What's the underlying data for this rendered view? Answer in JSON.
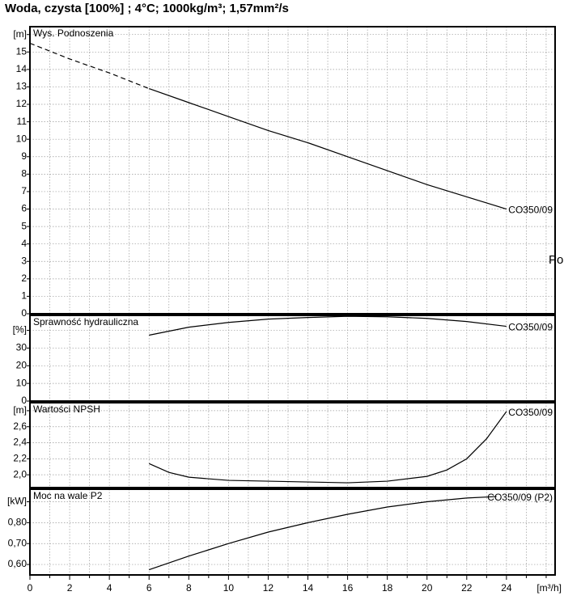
{
  "title": "Woda, czysta [100%] ; 4°C; 1000kg/m³; 1,57mm²/s",
  "chart_data": [
    {
      "type": "line",
      "title": "Wys. Podnoszenia",
      "annotation": "Po",
      "x": [
        0,
        2,
        4,
        6,
        8,
        10,
        12,
        14,
        16,
        18,
        20,
        22,
        24
      ],
      "series": [
        {
          "color": "#000000",
          "dashed": true,
          "values": [
            15.5,
            14.6,
            13.8,
            12.9,
            null,
            null,
            null,
            null,
            null,
            null,
            null,
            null,
            null
          ]
        },
        {
          "name": "CO350/09",
          "color": "#000000",
          "values": [
            null,
            null,
            null,
            12.9,
            12.1,
            11.3,
            10.5,
            9.8,
            9.0,
            8.2,
            7.4,
            6.7,
            6.0
          ]
        }
      ],
      "xlim": [
        0,
        26.45
      ],
      "ylim": [
        0,
        16.45
      ],
      "yticks": [
        0,
        1,
        2,
        3,
        4,
        5,
        6,
        7,
        8,
        9,
        10,
        11,
        12,
        13,
        14,
        15,
        {
          "value": 16,
          "label": "[m]"
        }
      ]
    },
    {
      "type": "line",
      "title": "Sprawność hydrauliczna",
      "x": [
        6,
        8,
        10,
        12,
        14,
        16,
        18,
        20,
        22,
        24
      ],
      "series": [
        {
          "name": "CO350/09",
          "color": "#000000",
          "values": [
            37.3,
            41.8,
            44.5,
            46.4,
            47.3,
            48,
            47.7,
            46.8,
            45,
            42.3
          ]
        }
      ],
      "xlim": [
        0,
        26.45
      ],
      "ylim": [
        0,
        48.5
      ],
      "yticks": [
        0,
        10,
        20,
        30,
        {
          "value": 40,
          "label": "[%]"
        }
      ]
    },
    {
      "type": "line",
      "title": "Wartości NPSH",
      "x": [
        6,
        7,
        8,
        10,
        12,
        14,
        16,
        18,
        20,
        21,
        22,
        23,
        24
      ],
      "series": [
        {
          "name": "CO350/09",
          "color": "#000000",
          "values": [
            2.14,
            2.03,
            1.97,
            1.93,
            1.92,
            1.91,
            1.9,
            1.92,
            1.98,
            2.06,
            2.2,
            2.45,
            2.79
          ]
        }
      ],
      "xlim": [
        0,
        26.45
      ],
      "ylim": [
        1.84,
        2.9
      ],
      "yticks": [
        {
          "value": 2.0,
          "label": "2,0"
        },
        {
          "value": 2.2,
          "label": "2,2"
        },
        {
          "value": 2.4,
          "label": "2,4"
        },
        {
          "value": 2.6,
          "label": "2,6"
        },
        {
          "value": 2.8,
          "label": "[m]"
        }
      ]
    },
    {
      "type": "line",
      "title": "Moc na wale P2",
      "x": [
        6,
        8,
        10,
        12,
        14,
        16,
        18,
        20,
        22,
        23.5
      ],
      "series": [
        {
          "name": "CO350/09 (P2)",
          "color": "#000000",
          "values": [
            0.575,
            0.64,
            0.7,
            0.755,
            0.8,
            0.84,
            0.875,
            0.9,
            0.918,
            0.925
          ]
        }
      ],
      "xlim": [
        0,
        26.45
      ],
      "ylim": [
        0.55,
        0.96
      ],
      "yticks": [
        {
          "value": 0.6,
          "label": "0,60"
        },
        {
          "value": 0.7,
          "label": "0,70"
        },
        {
          "value": 0.8,
          "label": "0,80"
        },
        {
          "value": 0.9,
          "label": "[kW]"
        }
      ],
      "xticks": [
        0,
        2,
        4,
        6,
        8,
        10,
        12,
        14,
        16,
        18,
        20,
        22,
        24
      ],
      "xminor_ticks": [
        1,
        3,
        5,
        7,
        9,
        11,
        13,
        15,
        17,
        19,
        21,
        23,
        25,
        26
      ],
      "x_unit": "[m³/h]"
    }
  ]
}
